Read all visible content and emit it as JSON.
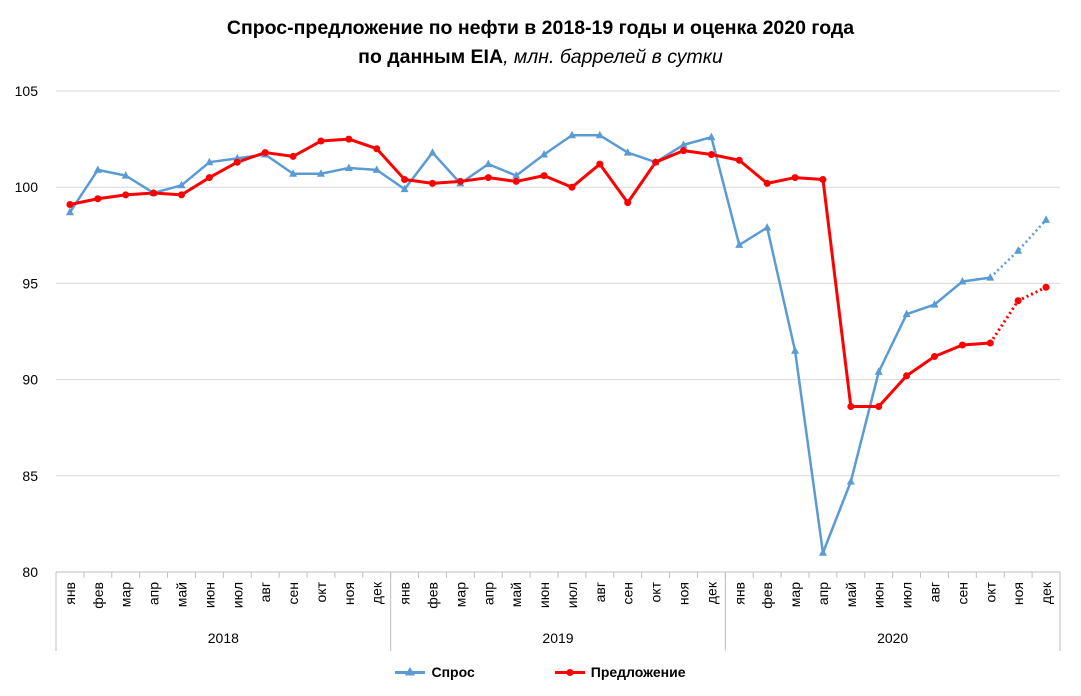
{
  "title": {
    "line1": "Спрос-предложение по нефти в 2018-19 годы и оценка 2020 года",
    "line2_bold": "по данным EIA",
    "line2_unit": ", млн. баррелей в сутки"
  },
  "chart_data": {
    "type": "line",
    "months": [
      "янв",
      "фев",
      "мар",
      "апр",
      "май",
      "июн",
      "июл",
      "авг",
      "сен",
      "окт",
      "ноя",
      "дек"
    ],
    "years": [
      "2018",
      "2019",
      "2020"
    ],
    "ylim": [
      80,
      105
    ],
    "yticks": [
      80,
      85,
      90,
      95,
      100,
      105
    ],
    "grid": true,
    "legend_position": "bottom",
    "series": [
      {
        "name": "Спрос",
        "color": "#5b9bd5",
        "marker": "triangle",
        "values": [
          98.7,
          100.9,
          100.6,
          99.7,
          100.1,
          101.3,
          101.5,
          101.7,
          100.7,
          100.7,
          101.0,
          100.9,
          99.9,
          101.8,
          100.2,
          101.2,
          100.6,
          101.7,
          102.7,
          102.7,
          101.8,
          101.3,
          102.2,
          102.6,
          97.0,
          97.9,
          91.5,
          81.0,
          84.7,
          90.4,
          93.4,
          93.9,
          95.1,
          95.3,
          96.7,
          98.3
        ],
        "dotted_from_index": 33
      },
      {
        "name": "Предложение",
        "color": "#ff0000",
        "marker": "circle",
        "values": [
          99.1,
          99.4,
          99.6,
          99.7,
          99.6,
          100.5,
          101.3,
          101.8,
          101.6,
          102.4,
          102.5,
          102.0,
          100.4,
          100.2,
          100.3,
          100.5,
          100.3,
          100.6,
          100.0,
          101.2,
          99.2,
          101.3,
          101.9,
          101.7,
          101.4,
          100.2,
          100.5,
          100.4,
          88.6,
          88.6,
          90.2,
          91.2,
          91.8,
          91.9,
          94.1,
          94.8
        ],
        "dotted_from_index": 33
      }
    ]
  }
}
